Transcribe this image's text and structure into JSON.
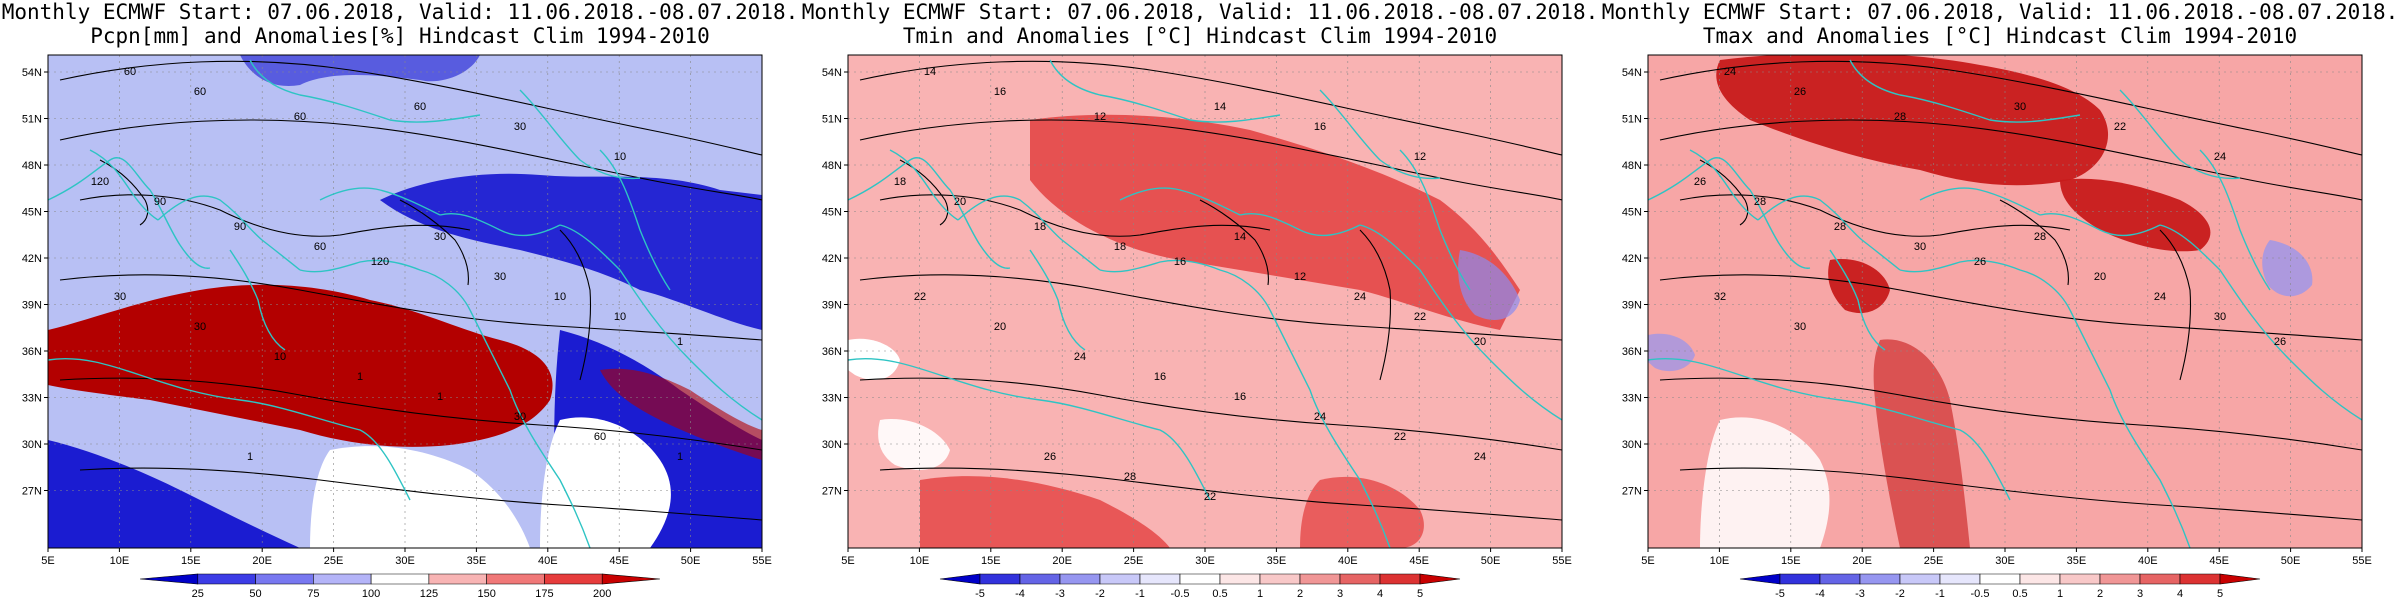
{
  "panels": [
    {
      "title_line1": "Monthly ECMWF Start: 07.06.2018, Valid: 11.06.2018.-08.07.2018.",
      "title_line2": "Pcpn[mm] and Anomalies[%] Hindcast Clim 1994-2010",
      "colorbar_ticks": [
        "25",
        "50",
        "75",
        "100",
        "125",
        "150",
        "175",
        "200"
      ],
      "colors": {
        "base": "#b8c0f4",
        "neg": "#0a0acd",
        "pos": "#b30000",
        "neutral": "#ffffff"
      },
      "contour_labels": [
        "60",
        "60",
        "60",
        "60",
        "30",
        "10",
        "120",
        "90",
        "90",
        "60",
        "120",
        "30",
        "30",
        "10",
        "10",
        "1",
        "30",
        "30",
        "10",
        "1",
        "1",
        "30",
        "60",
        "1",
        "1"
      ]
    },
    {
      "title_line1": "Monthly ECMWF Start: 07.06.2018, Valid: 11.06.2018.-08.07.2018.",
      "title_line2": "Tmin and Anomalies [°C] Hindcast Clim 1994-2010",
      "colorbar_ticks": [
        "-5",
        "-4",
        "-3",
        "-2",
        "-1",
        "-0.5",
        "0.5",
        "1",
        "2",
        "3",
        "4",
        "5"
      ],
      "colors": {
        "base": "#f9b3b3",
        "neg": "#8b8bf0",
        "pos": "#e34040",
        "neutral": "#ffffff"
      },
      "contour_labels": [
        "14",
        "16",
        "12",
        "14",
        "16",
        "12",
        "18",
        "20",
        "18",
        "18",
        "16",
        "14",
        "12",
        "24",
        "22",
        "20",
        "22",
        "20",
        "24",
        "16",
        "16",
        "24",
        "22",
        "24",
        "26",
        "28",
        "22"
      ]
    },
    {
      "title_line1": "Monthly ECMWF Start: 07.06.2018, Valid: 11.06.2018.-08.07.2018.",
      "title_line2": "Tmax and Anomalies [°C] Hindcast Clim 1994-2010",
      "colorbar_ticks": [
        "-5",
        "-4",
        "-3",
        "-2",
        "-1",
        "-0.5",
        "0.5",
        "1",
        "2",
        "3",
        "4",
        "5"
      ],
      "colors": {
        "base": "#f7a6a6",
        "neg": "#9494f0",
        "pos": "#c71a1a",
        "neutral": "#ffffff"
      },
      "contour_labels": [
        "24",
        "26",
        "28",
        "30",
        "22",
        "24",
        "26",
        "28",
        "28",
        "30",
        "26",
        "28",
        "20",
        "24",
        "30",
        "26",
        "32",
        "30"
      ]
    }
  ],
  "axes": {
    "lat_ticks": [
      "54N",
      "51N",
      "48N",
      "45N",
      "42N",
      "39N",
      "36N",
      "33N",
      "30N",
      "27N"
    ],
    "lon_ticks": [
      "5E",
      "10E",
      "15E",
      "20E",
      "25E",
      "30E",
      "35E",
      "40E",
      "45E",
      "50E",
      "55E"
    ]
  },
  "colorbar_palette": {
    "precip": [
      "#0000c8",
      "#3c3ce6",
      "#7878f0",
      "#b4b4f8",
      "#ffffff",
      "#f8b4b4",
      "#f07878",
      "#e63c3c",
      "#c80000"
    ],
    "temp": [
      "#0000c8",
      "#3232dc",
      "#6464e6",
      "#9696f0",
      "#c8c8f8",
      "#e6e6fc",
      "#ffffff",
      "#fce6e6",
      "#f8c8c8",
      "#f09696",
      "#e66464",
      "#dc3232",
      "#c80000"
    ]
  },
  "coastline_color": "#2ec4c4"
}
